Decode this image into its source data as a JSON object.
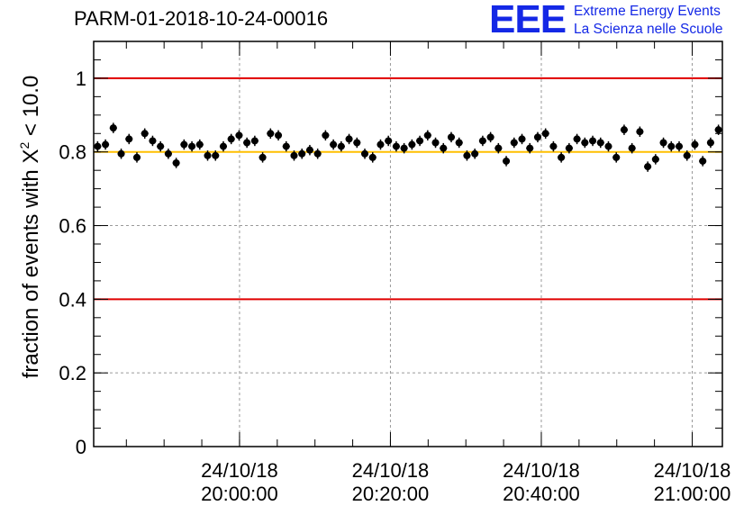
{
  "title": "PARM-01-2018-10-24-00016",
  "logo": {
    "mark": "EEE",
    "line1": "Extreme Energy Events",
    "line2": "La Scienza nelle Scuole",
    "color": "#1428e6"
  },
  "chart_data": {
    "type": "scatter",
    "title": "PARM-01-2018-10-24-00016",
    "ylabel": {
      "prefix": "fraction of events with X",
      "sup": "2",
      "suffix": " < 10.0"
    },
    "xlabel": "",
    "x_axis": {
      "unit": "datetime",
      "range": [
        "2018-10-24T19:40:40",
        "2018-10-24T21:04:00"
      ],
      "ticks": [
        {
          "x": "2018-10-24T20:00:00",
          "line1": "24/10/18",
          "line2": "20:00:00"
        },
        {
          "x": "2018-10-24T20:20:00",
          "line1": "24/10/18",
          "line2": "20:20:00"
        },
        {
          "x": "2018-10-24T20:40:00",
          "line1": "24/10/18",
          "line2": "20:40:00"
        },
        {
          "x": "2018-10-24T21:00:00",
          "line1": "24/10/18",
          "line2": "21:00:00"
        }
      ]
    },
    "ylim": [
      0,
      1.1
    ],
    "yticks": [
      "0",
      "0.2",
      "0.4",
      "0.6",
      "0.8",
      "1"
    ],
    "grid": true,
    "reference_lines": [
      {
        "y": 1.0,
        "color": "#e00000"
      },
      {
        "y": 0.8,
        "color": "#ffbf00"
      },
      {
        "y": 0.4,
        "color": "#e00000"
      }
    ],
    "series": [
      {
        "x_start": "2018-10-24T19:40:40",
        "x_end": "2018-10-24T21:04:00",
        "y": [
          0.815,
          0.82,
          0.865,
          0.795,
          0.835,
          0.785,
          0.85,
          0.83,
          0.815,
          0.795,
          0.77,
          0.82,
          0.815,
          0.82,
          0.79,
          0.79,
          0.815,
          0.835,
          0.845,
          0.825,
          0.83,
          0.785,
          0.85,
          0.845,
          0.815,
          0.79,
          0.795,
          0.805,
          0.795,
          0.845,
          0.82,
          0.815,
          0.835,
          0.825,
          0.795,
          0.785,
          0.82,
          0.83,
          0.815,
          0.81,
          0.82,
          0.83,
          0.845,
          0.825,
          0.81,
          0.84,
          0.825,
          0.79,
          0.795,
          0.83,
          0.84,
          0.81,
          0.775,
          0.825,
          0.835,
          0.81,
          0.84,
          0.85,
          0.815,
          0.785,
          0.81,
          0.835,
          0.825,
          0.83,
          0.825,
          0.815,
          0.785,
          0.86,
          0.81,
          0.855,
          0.76,
          0.78,
          0.825,
          0.815,
          0.815,
          0.79,
          0.82,
          0.775,
          0.825,
          0.86
        ],
        "yerr": 0.014,
        "color": "#000000"
      }
    ]
  }
}
